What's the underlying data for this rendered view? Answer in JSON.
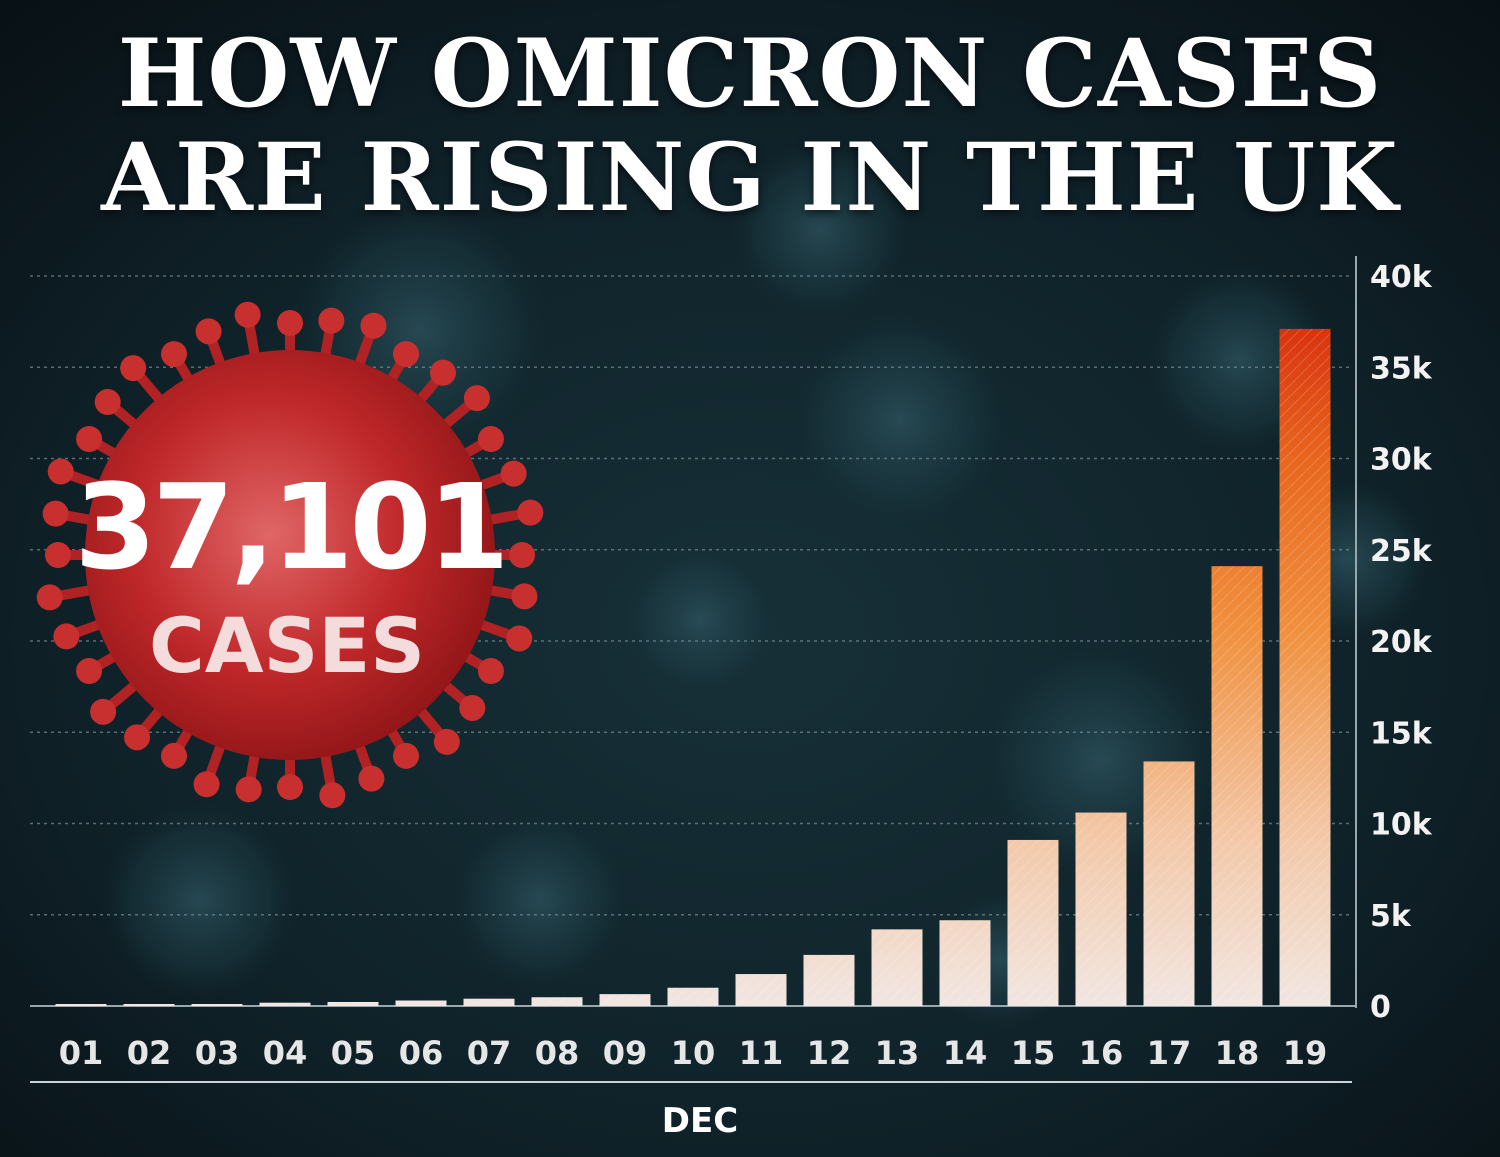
{
  "title": {
    "line1": "HOW OMICRON CASES",
    "line2": "ARE RISING IN THE UK"
  },
  "callout": {
    "number": "37,101",
    "label": "CASES"
  },
  "chart_data": {
    "type": "bar",
    "title": "HOW OMICRON CASES ARE RISING IN THE UK",
    "xlabel": "DEC",
    "ylabel": "",
    "categories": [
      "01",
      "02",
      "03",
      "04",
      "05",
      "06",
      "07",
      "08",
      "09",
      "10",
      "11",
      "12",
      "13",
      "14",
      "15",
      "16",
      "17",
      "18",
      "19"
    ],
    "values": [
      30,
      40,
      90,
      180,
      220,
      300,
      400,
      480,
      650,
      1000,
      1750,
      2800,
      4200,
      4700,
      9100,
      10600,
      13400,
      24100,
      37101
    ],
    "ylim": [
      0,
      40000
    ],
    "yticks": [
      0,
      5000,
      10000,
      15000,
      20000,
      25000,
      30000,
      35000,
      40000
    ],
    "ytick_labels": [
      "0",
      "5k",
      "10k",
      "15k",
      "20k",
      "25k",
      "30k",
      "35k",
      "40k"
    ],
    "y_axis_side": "right",
    "grid": true,
    "legend": "none",
    "colors": {
      "bar_low": "#f1e6e1",
      "bar_mid": "#f08c3c",
      "bar_high": "#e03a12",
      "grid": "#7b8d95",
      "virus": "#c0282a"
    }
  }
}
